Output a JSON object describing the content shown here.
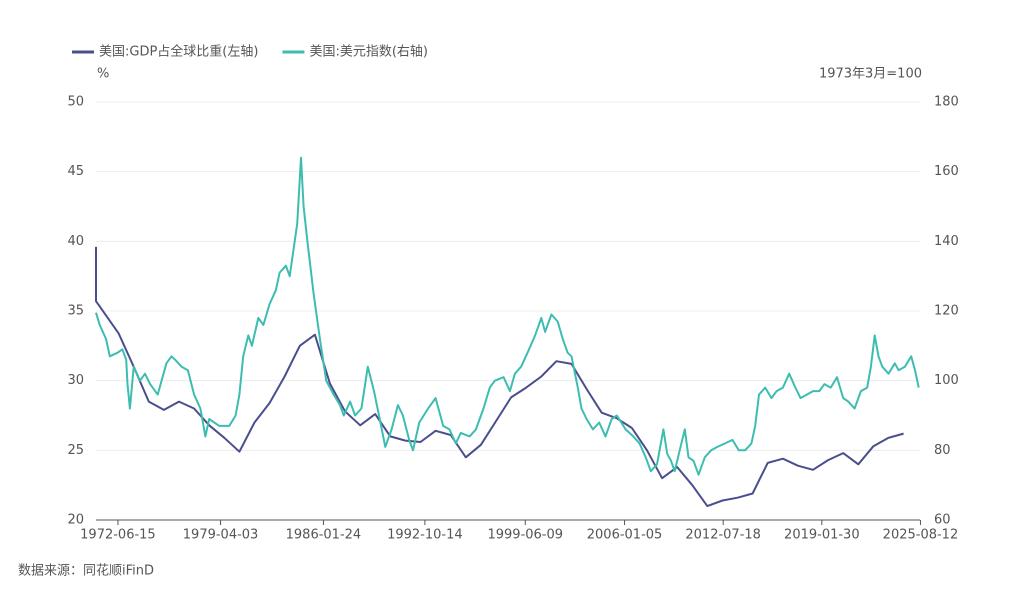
{
  "chart_data": {
    "type": "line",
    "y_label": "%",
    "y2_label": "1973年3月=100",
    "source": "数据来源：同花顺iFinD",
    "legend": "top-left",
    "grid": true,
    "xlim": [
      "1971-01",
      "2025-08"
    ],
    "xticks": [
      "1972-06-15",
      "1979-04-03",
      "1986-01-24",
      "1992-10-14",
      "1999-06-09",
      "2006-01-05",
      "2012-07-18",
      "2019-01-30",
      "2025-08-12"
    ],
    "ylim": [
      20,
      50
    ],
    "yticks": [
      20,
      25,
      30,
      35,
      40,
      45,
      50
    ],
    "y2lim": [
      60,
      180
    ],
    "y2ticks": [
      60,
      80,
      100,
      120,
      140,
      160,
      180
    ],
    "series": [
      {
        "name": "美国:GDP占全球比重(左轴)",
        "color": "#4a4f8c",
        "axis": "y",
        "x": [
          "1971-01",
          "1971-01",
          "1972-07",
          "1973-07",
          "1974-07",
          "1975-07",
          "1976-07",
          "1977-07",
          "1978-07",
          "1979-07",
          "1980-07",
          "1981-07",
          "1982-07",
          "1983-07",
          "1984-07",
          "1985-07",
          "1986-07",
          "1987-07",
          "1988-07",
          "1989-07",
          "1990-07",
          "1991-07",
          "1992-07",
          "1993-07",
          "1994-07",
          "1995-07",
          "1996-07",
          "1997-07",
          "1998-07",
          "1999-07",
          "2000-07",
          "2001-07",
          "2002-07",
          "2003-07",
          "2004-07",
          "2005-07",
          "2006-07",
          "2007-07",
          "2008-07",
          "2009-07",
          "2010-07",
          "2011-07",
          "2012-07",
          "2013-07",
          "2014-07",
          "2015-07",
          "2016-07",
          "2017-07",
          "2018-07",
          "2019-07",
          "2020-07",
          "2021-07",
          "2022-07",
          "2023-07",
          "2024-07"
        ],
        "values": [
          39.6,
          35.7,
          33.4,
          31.0,
          28.5,
          27.9,
          28.5,
          28.0,
          26.8,
          25.9,
          24.9,
          27.0,
          28.4,
          30.3,
          32.5,
          33.3,
          29.8,
          27.8,
          26.8,
          27.6,
          26.0,
          25.7,
          25.6,
          26.4,
          26.1,
          24.5,
          25.4,
          27.1,
          28.8,
          29.5,
          30.3,
          31.4,
          31.2,
          29.4,
          27.7,
          27.3,
          26.6,
          25.0,
          23.0,
          23.8,
          22.5,
          21.0,
          21.4,
          21.6,
          21.9,
          24.1,
          24.4,
          23.9,
          23.6,
          24.3,
          24.8,
          24.0,
          25.3,
          25.9,
          26.2
        ]
      },
      {
        "name": "美国:美元指数(右轴)",
        "color": "#3dbdb0",
        "axis": "y2",
        "x": [
          "1971-01",
          "1971-04",
          "1971-09",
          "1971-12",
          "1972-06",
          "1972-10",
          "1973-01",
          "1973-02",
          "1973-04",
          "1973-07",
          "1973-12",
          "1974-04",
          "1974-08",
          "1975-02",
          "1975-09",
          "1976-01",
          "1976-04",
          "1976-09",
          "1977-02",
          "1977-07",
          "1977-12",
          "1978-04",
          "1978-07",
          "1979-03",
          "1979-11",
          "1980-04",
          "1980-07",
          "1980-10",
          "1981-02",
          "1981-05",
          "1981-10",
          "1982-02",
          "1982-07",
          "1982-12",
          "1983-03",
          "1983-08",
          "1983-11",
          "1984-03",
          "1984-05",
          "1984-08",
          "1984-10",
          "1985-01",
          "1985-06",
          "1985-11",
          "1986-04",
          "1986-10",
          "1987-03",
          "1987-06",
          "1987-11",
          "1988-03",
          "1988-08",
          "1989-01",
          "1989-06",
          "1989-10",
          "1990-03",
          "1990-08",
          "1991-01",
          "1991-05",
          "1991-10",
          "1992-01",
          "1992-06",
          "1993-01",
          "1993-07",
          "1994-01",
          "1994-06",
          "1994-11",
          "1995-03",
          "1995-10",
          "1996-03",
          "1996-09",
          "1997-02",
          "1997-06",
          "1998-01",
          "1998-06",
          "1998-10",
          "1999-03",
          "1999-08",
          "2000-02",
          "2000-07",
          "2000-10",
          "2001-03",
          "2001-08",
          "2001-12",
          "2002-04",
          "2002-07",
          "2002-12",
          "2003-03",
          "2003-07",
          "2003-12",
          "2004-05",
          "2004-10",
          "2005-03",
          "2005-07",
          "2006-02",
          "2006-08",
          "2007-01",
          "2007-06",
          "2007-10",
          "2008-03",
          "2008-08",
          "2008-11",
          "2009-02",
          "2009-05",
          "2009-09",
          "2010-01",
          "2010-04",
          "2010-08",
          "2010-12",
          "2011-05",
          "2011-10",
          "2012-03",
          "2012-09",
          "2013-03",
          "2013-08",
          "2014-01",
          "2014-06",
          "2014-09",
          "2014-12",
          "2015-05",
          "2015-10",
          "2016-02",
          "2016-07",
          "2016-12",
          "2017-05",
          "2017-09",
          "2018-02",
          "2018-07",
          "2018-12",
          "2019-04",
          "2019-09",
          "2020-02",
          "2020-07",
          "2020-11",
          "2021-04",
          "2021-09",
          "2022-02",
          "2022-05",
          "2022-08",
          "2022-11",
          "2023-02",
          "2023-07",
          "2023-12",
          "2024-03",
          "2024-08",
          "2025-01",
          "2025-04",
          "2025-07"
        ],
        "values": [
          119.5,
          116,
          112,
          107,
          108,
          109,
          106,
          99,
          92,
          104,
          100,
          102,
          99,
          96,
          105,
          107,
          106,
          104,
          103,
          96,
          92,
          84,
          89,
          87,
          87,
          90,
          96,
          107,
          113,
          110,
          118,
          116,
          122,
          126,
          131,
          133,
          130,
          140,
          145,
          164,
          150,
          140,
          125,
          112,
          100,
          96,
          93,
          90,
          94,
          90,
          92,
          104,
          97,
          90,
          81,
          86,
          93,
          90,
          83,
          80,
          88,
          92,
          95,
          87,
          86,
          82,
          85,
          84,
          86,
          92,
          98,
          100,
          101,
          97,
          102,
          104,
          108,
          113,
          118,
          114,
          119,
          117,
          112,
          108,
          107,
          98,
          92,
          89,
          86,
          88,
          84,
          89,
          90,
          86,
          84,
          82,
          78,
          74,
          76,
          86,
          79,
          77,
          74,
          80,
          86,
          78,
          77,
          73,
          78,
          80,
          81,
          82,
          83,
          80,
          80,
          82,
          87,
          96,
          98,
          95,
          97,
          98,
          102,
          98,
          95,
          96,
          97,
          97,
          99,
          98,
          101,
          95,
          94,
          92,
          97,
          98,
          104,
          113,
          107,
          104,
          102,
          105,
          103,
          104,
          107,
          103,
          98
        ]
      }
    ]
  }
}
